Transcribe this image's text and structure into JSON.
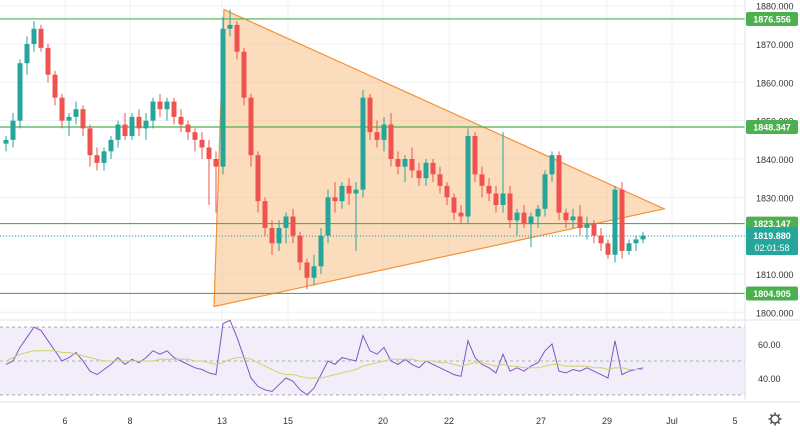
{
  "chart_data": [
    {
      "type": "candlestick",
      "instrument": "XAU/USD",
      "x_ticks": [
        "6",
        "8",
        "13",
        "15",
        "20",
        "22",
        "27",
        "29",
        "Jul",
        "5"
      ],
      "y_ticks": [
        "1800.000",
        "1810.000",
        "1820.000",
        "1830.000",
        "1840.000",
        "1850.000",
        "1860.000",
        "1870.000",
        "1880.000"
      ],
      "ylim": [
        1798.5,
        1881.5
      ],
      "horizontal_levels": [
        {
          "value": 1876.556,
          "label": "1876.556"
        },
        {
          "value": 1848.347,
          "label": "1848.347"
        },
        {
          "value": 1823.147,
          "label": "1823.147"
        },
        {
          "value": 1804.905,
          "label": "1804.905"
        }
      ],
      "current_price": {
        "value": 1819.88,
        "label": "1819.880",
        "countdown": "02:01:58"
      },
      "triangle_pattern": {
        "apex_high": 1879.0,
        "apex_low": 1801.5,
        "tip": 1827.0
      },
      "candles": [
        [
          1844,
          1846,
          1842,
          1845
        ],
        [
          1845,
          1852,
          1843,
          1850
        ],
        [
          1850,
          1866,
          1848,
          1865
        ],
        [
          1865,
          1872,
          1862,
          1870
        ],
        [
          1870,
          1876,
          1868,
          1874
        ],
        [
          1874,
          1875,
          1868,
          1869
        ],
        [
          1869,
          1870,
          1860,
          1862
        ],
        [
          1862,
          1863,
          1854,
          1856
        ],
        [
          1856,
          1857,
          1848,
          1850
        ],
        [
          1850,
          1852,
          1846,
          1851
        ],
        [
          1851,
          1855,
          1849,
          1853
        ],
        [
          1853,
          1854,
          1846,
          1848
        ],
        [
          1848,
          1849,
          1838,
          1841
        ],
        [
          1841,
          1843,
          1837,
          1839
        ],
        [
          1839,
          1843,
          1837,
          1842
        ],
        [
          1842,
          1846,
          1840,
          1845
        ],
        [
          1845,
          1850,
          1843,
          1849
        ],
        [
          1849,
          1852,
          1845,
          1846
        ],
        [
          1846,
          1852,
          1845,
          1851
        ],
        [
          1851,
          1853,
          1846,
          1848
        ],
        [
          1848,
          1852,
          1845,
          1850
        ],
        [
          1850,
          1856,
          1848,
          1855
        ],
        [
          1855,
          1857,
          1851,
          1853
        ],
        [
          1853,
          1856,
          1850,
          1855
        ],
        [
          1855,
          1856,
          1849,
          1851
        ],
        [
          1851,
          1853,
          1847,
          1849
        ],
        [
          1849,
          1850,
          1845,
          1847
        ],
        [
          1847,
          1848,
          1842,
          1845
        ],
        [
          1845,
          1847,
          1840,
          1843
        ],
        [
          1843,
          1845,
          1828,
          1840
        ],
        [
          1840,
          1842,
          1826,
          1838
        ],
        [
          1838,
          1877,
          1836,
          1874
        ],
        [
          1874,
          1879,
          1872,
          1875
        ],
        [
          1875,
          1876,
          1866,
          1868
        ],
        [
          1868,
          1869,
          1854,
          1856
        ],
        [
          1856,
          1857,
          1838,
          1841
        ],
        [
          1841,
          1842,
          1826,
          1829
        ],
        [
          1829,
          1830,
          1820,
          1822
        ],
        [
          1822,
          1824,
          1815,
          1818
        ],
        [
          1818,
          1824,
          1816,
          1822
        ],
        [
          1822,
          1826,
          1818,
          1825
        ],
        [
          1825,
          1827,
          1818,
          1820
        ],
        [
          1820,
          1821,
          1811,
          1813
        ],
        [
          1813,
          1814,
          1806,
          1809
        ],
        [
          1809,
          1815,
          1807,
          1812
        ],
        [
          1812,
          1822,
          1810,
          1820
        ],
        [
          1820,
          1832,
          1818,
          1830
        ],
        [
          1830,
          1834,
          1826,
          1829
        ],
        [
          1829,
          1834,
          1827,
          1833
        ],
        [
          1833,
          1835,
          1828,
          1831
        ],
        [
          1831,
          1834,
          1816,
          1832
        ],
        [
          1832,
          1858,
          1830,
          1856
        ],
        [
          1856,
          1857,
          1845,
          1847
        ],
        [
          1847,
          1850,
          1843,
          1845
        ],
        [
          1845,
          1851,
          1842,
          1849
        ],
        [
          1849,
          1852,
          1838,
          1840
        ],
        [
          1840,
          1842,
          1836,
          1838
        ],
        [
          1838,
          1841,
          1834,
          1840
        ],
        [
          1840,
          1843,
          1835,
          1837
        ],
        [
          1837,
          1839,
          1833,
          1835
        ],
        [
          1835,
          1840,
          1833,
          1839
        ],
        [
          1839,
          1840,
          1834,
          1836
        ],
        [
          1836,
          1838,
          1831,
          1833
        ],
        [
          1833,
          1834,
          1828,
          1830
        ],
        [
          1830,
          1831,
          1824,
          1826
        ],
        [
          1826,
          1828,
          1823,
          1825
        ],
        [
          1825,
          1848,
          1823,
          1846
        ],
        [
          1846,
          1847,
          1834,
          1836
        ],
        [
          1836,
          1838,
          1830,
          1833
        ],
        [
          1833,
          1835,
          1829,
          1831
        ],
        [
          1831,
          1833,
          1826,
          1828
        ],
        [
          1828,
          1847,
          1826,
          1831
        ],
        [
          1831,
          1833,
          1822,
          1824
        ],
        [
          1824,
          1827,
          1820,
          1826
        ],
        [
          1826,
          1828,
          1822,
          1823
        ],
        [
          1823,
          1826,
          1817,
          1825
        ],
        [
          1825,
          1828,
          1822,
          1827
        ],
        [
          1827,
          1837,
          1825,
          1836
        ],
        [
          1836,
          1842,
          1834,
          1841
        ],
        [
          1841,
          1842,
          1824,
          1826
        ],
        [
          1826,
          1827,
          1822,
          1824
        ],
        [
          1824,
          1827,
          1822,
          1825
        ],
        [
          1825,
          1828,
          1820,
          1822
        ],
        [
          1822,
          1825,
          1819,
          1823
        ],
        [
          1823,
          1824,
          1818,
          1820
        ],
        [
          1820,
          1822,
          1816,
          1818
        ],
        [
          1818,
          1819,
          1814,
          1815
        ],
        [
          1815,
          1833,
          1813,
          1832
        ],
        [
          1832,
          1834,
          1814,
          1816
        ],
        [
          1816,
          1819,
          1815,
          1818
        ],
        [
          1818,
          1820,
          1816,
          1819
        ],
        [
          1819,
          1821,
          1818,
          1820
        ]
      ],
      "rsi": {
        "y_ticks": [
          "40.00",
          "60.00"
        ],
        "ylim": [
          27,
          73
        ],
        "levels": [
          30,
          50,
          70
        ],
        "values": [
          48,
          50,
          58,
          64,
          70,
          68,
          62,
          56,
          50,
          52,
          55,
          50,
          44,
          42,
          45,
          48,
          52,
          48,
          51,
          49,
          52,
          56,
          54,
          56,
          52,
          50,
          48,
          46,
          45,
          43,
          42,
          72,
          74,
          64,
          52,
          40,
          35,
          33,
          32,
          36,
          40,
          38,
          33,
          30,
          34,
          42,
          50,
          48,
          52,
          51,
          50,
          65,
          56,
          54,
          58,
          50,
          48,
          51,
          48,
          46,
          50,
          48,
          46,
          44,
          42,
          41,
          62,
          52,
          48,
          46,
          43,
          54,
          44,
          46,
          44,
          47,
          49,
          56,
          60,
          44,
          43,
          45,
          44,
          46,
          44,
          42,
          40,
          62,
          42,
          44,
          45,
          46
        ],
        "ma_values": [
          50,
          52,
          54,
          55,
          56,
          56,
          56,
          56,
          55,
          55,
          54,
          53,
          52,
          51,
          50,
          50,
          50,
          50,
          50,
          50,
          50,
          50,
          51,
          51,
          51,
          51,
          51,
          50,
          50,
          49,
          48,
          49,
          51,
          52,
          52,
          51,
          49,
          47,
          45,
          43,
          42,
          42,
          41,
          40,
          40,
          40,
          41,
          42,
          43,
          44,
          45,
          47,
          48,
          49,
          50,
          51,
          51,
          51,
          51,
          50,
          50,
          50,
          49,
          49,
          48,
          47,
          48,
          49,
          49,
          48,
          47,
          48,
          47,
          47,
          46,
          46,
          46,
          47,
          48,
          48,
          47,
          47,
          47,
          47,
          46,
          46,
          45,
          46,
          46,
          45,
          45,
          45
        ]
      }
    }
  ]
}
